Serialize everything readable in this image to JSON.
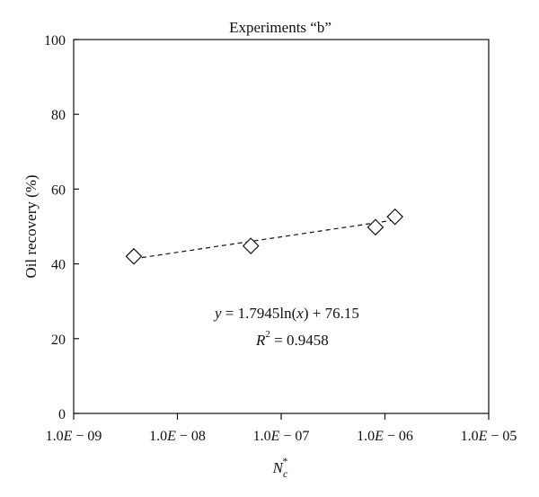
{
  "chart_data": {
    "type": "scatter",
    "title": "Experiments “b”",
    "xlabel": {
      "base": "N",
      "sub": "c",
      "sup": "*"
    },
    "ylabel": "Oil recovery (%)",
    "xscale": "log",
    "xlim": [
      1e-09,
      1e-05
    ],
    "ylim": [
      0,
      100
    ],
    "x_ticks": [
      {
        "value": 1e-09,
        "label": "1.0E − 09"
      },
      {
        "value": 1e-08,
        "label": "1.0E − 08"
      },
      {
        "value": 1e-07,
        "label": "1.0E − 07"
      },
      {
        "value": 1e-06,
        "label": "1.0E − 06"
      },
      {
        "value": 1e-05,
        "label": "1.0E − 05"
      }
    ],
    "y_ticks": [
      {
        "value": 0,
        "label": "0"
      },
      {
        "value": 20,
        "label": "20"
      },
      {
        "value": 40,
        "label": "40"
      },
      {
        "value": 60,
        "label": "60"
      },
      {
        "value": 80,
        "label": "80"
      },
      {
        "value": 100,
        "label": "100"
      }
    ],
    "grid": false,
    "legend": "none",
    "marker": "diamond-open",
    "series": [
      {
        "points": [
          {
            "x": 3.8e-09,
            "y": 42.0
          },
          {
            "x": 5.1e-08,
            "y": 44.8
          },
          {
            "x": 8.1e-07,
            "y": 49.8
          },
          {
            "x": 1.25e-06,
            "y": 52.6
          }
        ]
      }
    ],
    "trendline": {
      "type": "logarithmic",
      "style": "dashed",
      "slope": 1.7945,
      "intercept": 76.15,
      "x_range": [
        3.8e-09,
        1.25e-06
      ]
    },
    "annotations": {
      "equation": {
        "y": "y",
        "eq": " = 1.7945ln(",
        "x": "x",
        "rest": ") + 76.15"
      },
      "r2": {
        "R": "R",
        "sup": "2",
        "rest": " = 0.9458"
      }
    }
  }
}
